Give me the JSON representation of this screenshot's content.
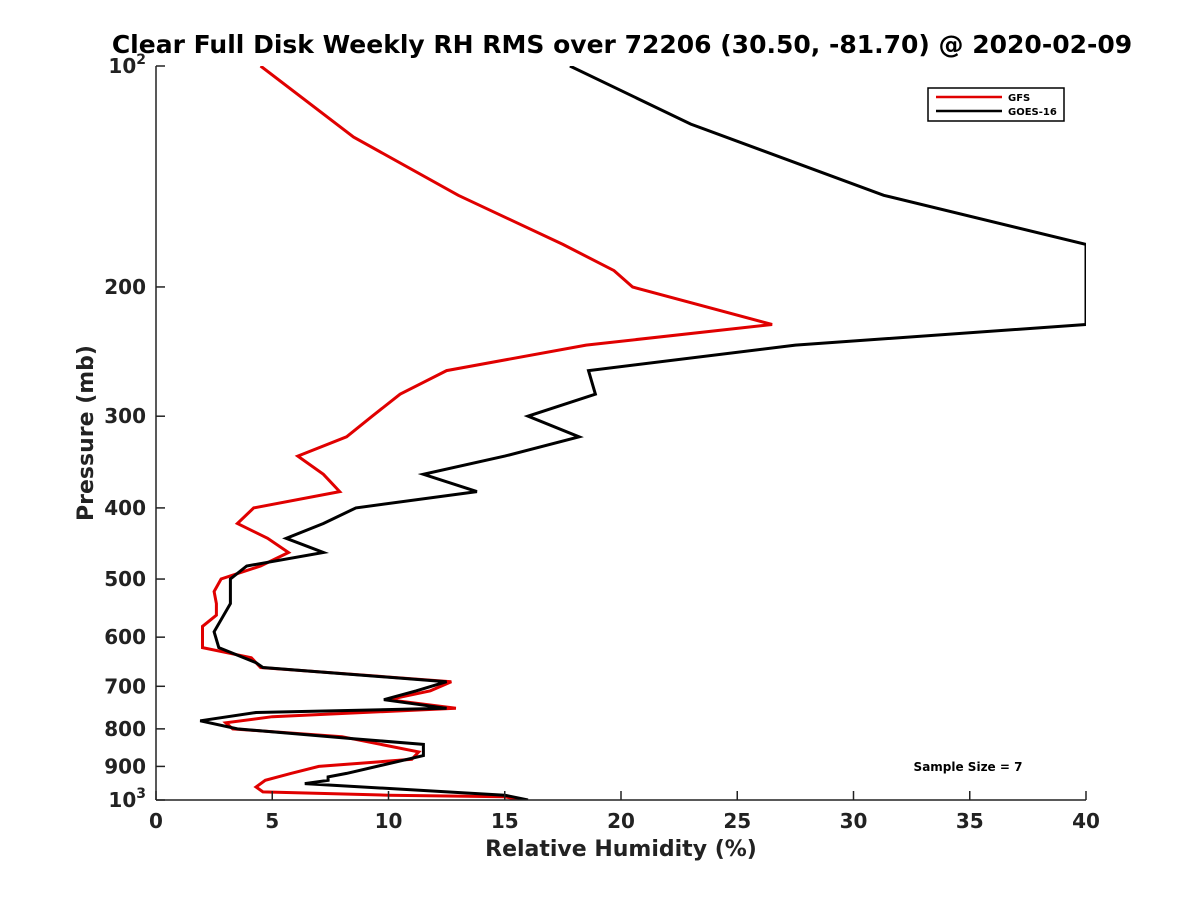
{
  "chart_data": {
    "type": "line",
    "title": "Clear Full Disk Weekly RH RMS over 72206 (30.50, -81.70) @ 2020-02-09",
    "xlabel": "Relative Humidity (%)",
    "ylabel": "Pressure (mb)",
    "xlim": [
      0,
      40
    ],
    "ylim": [
      100,
      1000
    ],
    "y_scale": "log",
    "y_reversed": true,
    "grid": false,
    "legend_position": "top-right",
    "x_ticks": [
      "0",
      "5",
      "10",
      "15",
      "20",
      "25",
      "30",
      "35",
      "40"
    ],
    "y_ticks": [
      {
        "value": 100,
        "base": "10",
        "exp": "2"
      },
      {
        "value": 200,
        "label": "200"
      },
      {
        "value": 300,
        "label": "300"
      },
      {
        "value": 400,
        "label": "400"
      },
      {
        "value": 500,
        "label": "500"
      },
      {
        "value": 600,
        "label": "600"
      },
      {
        "value": 700,
        "label": "700"
      },
      {
        "value": 800,
        "label": "800"
      },
      {
        "value": 900,
        "label": "900"
      },
      {
        "value": 1000,
        "base": "10",
        "exp": "3"
      }
    ],
    "annotation": "Sample Size = 7",
    "series": [
      {
        "name": "GFS",
        "color": "#e00000",
        "points": [
          [
            4.5,
            100
          ],
          [
            8.5,
            125
          ],
          [
            13,
            150
          ],
          [
            17.5,
            175
          ],
          [
            19.7,
            190
          ],
          [
            20.5,
            200
          ],
          [
            26.5,
            225
          ],
          [
            18.5,
            240
          ],
          [
            12.5,
            260
          ],
          [
            10.5,
            280
          ],
          [
            9.3,
            300
          ],
          [
            8.2,
            320
          ],
          [
            6.1,
            340
          ],
          [
            7.2,
            360
          ],
          [
            7.9,
            380
          ],
          [
            4.2,
            400
          ],
          [
            3.5,
            420
          ],
          [
            4.8,
            440
          ],
          [
            5.7,
            460
          ],
          [
            4.5,
            480
          ],
          [
            2.8,
            500
          ],
          [
            2.5,
            520
          ],
          [
            2.6,
            540
          ],
          [
            2.6,
            560
          ],
          [
            2.0,
            580
          ],
          [
            2.0,
            600
          ],
          [
            2.0,
            620
          ],
          [
            4.1,
            640
          ],
          [
            4.5,
            660
          ],
          [
            12.7,
            690
          ],
          [
            11.8,
            710
          ],
          [
            10.0,
            730
          ],
          [
            12.9,
            750
          ],
          [
            5.0,
            770
          ],
          [
            3.0,
            785
          ],
          [
            3.3,
            800
          ],
          [
            8.0,
            820
          ],
          [
            11.3,
            860
          ],
          [
            11.0,
            880
          ],
          [
            7.0,
            900
          ],
          [
            5.8,
            920
          ],
          [
            4.7,
            940
          ],
          [
            4.3,
            960
          ],
          [
            4.6,
            975
          ],
          [
            10.0,
            985
          ],
          [
            15.0,
            990
          ],
          [
            15.7,
            1000
          ]
        ]
      },
      {
        "name": "GOES-16",
        "color": "#000000",
        "points": [
          [
            17.8,
            100
          ],
          [
            23.0,
            120
          ],
          [
            31.3,
            150
          ],
          [
            40.0,
            175
          ],
          [
            40.0,
            225
          ],
          [
            27.5,
            240
          ],
          [
            18.6,
            260
          ],
          [
            18.9,
            280
          ],
          [
            16.0,
            300
          ],
          [
            18.2,
            320
          ],
          [
            15.0,
            340
          ],
          [
            11.5,
            360
          ],
          [
            13.8,
            380
          ],
          [
            8.6,
            400
          ],
          [
            7.2,
            420
          ],
          [
            5.6,
            440
          ],
          [
            7.2,
            460
          ],
          [
            3.9,
            480
          ],
          [
            3.2,
            500
          ],
          [
            3.2,
            540
          ],
          [
            2.5,
            590
          ],
          [
            2.7,
            620
          ],
          [
            4.3,
            650
          ],
          [
            4.6,
            660
          ],
          [
            12.5,
            690
          ],
          [
            11.2,
            710
          ],
          [
            9.8,
            730
          ],
          [
            12.5,
            750
          ],
          [
            4.3,
            760
          ],
          [
            1.9,
            780
          ],
          [
            3.5,
            800
          ],
          [
            8.5,
            825
          ],
          [
            11.5,
            840
          ],
          [
            11.5,
            870
          ],
          [
            8.2,
            920
          ],
          [
            7.4,
            930
          ],
          [
            7.4,
            940
          ],
          [
            6.4,
            950
          ],
          [
            15.0,
            985
          ],
          [
            16.0,
            1000
          ]
        ]
      }
    ]
  }
}
